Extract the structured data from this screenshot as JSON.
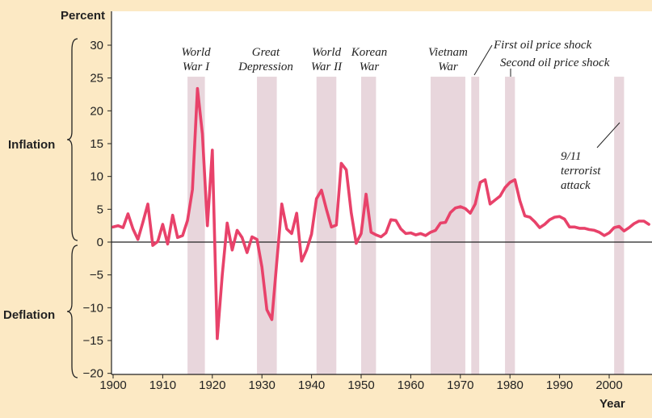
{
  "chart_data": {
    "type": "line",
    "title": "",
    "ylabel": "Percent",
    "xlabel": "Year",
    "xlim": [
      1900,
      2008
    ],
    "ylim": [
      -20,
      30
    ],
    "xticks": [
      "1900",
      "1910",
      "1920",
      "1930",
      "1940",
      "1950",
      "1960",
      "1970",
      "1980",
      "1990",
      "2000"
    ],
    "yticks": [
      "30",
      "25",
      "20",
      "15",
      "10",
      "5",
      "0",
      "−5",
      "−10",
      "−15",
      "−20"
    ],
    "brace_labels": {
      "inflation": "Inflation",
      "deflation": "Deflation"
    },
    "line_color": "#e8426a",
    "band_color": "#e8d6dc",
    "series": [
      {
        "name": "Inflation rate",
        "x": [
          1900,
          1901,
          1902,
          1903,
          1904,
          1905,
          1906,
          1907,
          1908,
          1909,
          1910,
          1911,
          1912,
          1913,
          1914,
          1915,
          1916,
          1917,
          1918,
          1919,
          1920,
          1921,
          1922,
          1923,
          1924,
          1925,
          1926,
          1927,
          1928,
          1929,
          1930,
          1931,
          1932,
          1933,
          1934,
          1935,
          1936,
          1937,
          1938,
          1939,
          1940,
          1941,
          1942,
          1943,
          1944,
          1945,
          1946,
          1947,
          1948,
          1949,
          1950,
          1951,
          1952,
          1953,
          1954,
          1955,
          1956,
          1957,
          1958,
          1959,
          1960,
          1961,
          1962,
          1963,
          1964,
          1965,
          1966,
          1967,
          1968,
          1969,
          1970,
          1971,
          1972,
          1973,
          1974,
          1975,
          1976,
          1977,
          1978,
          1979,
          1980,
          1981,
          1982,
          1983,
          1984,
          1985,
          1986,
          1987,
          1988,
          1989,
          1990,
          1991,
          1992,
          1993,
          1994,
          1995,
          1996,
          1997,
          1998,
          1999,
          2000,
          2001,
          2002,
          2003,
          2004,
          2005,
          2006,
          2007,
          2008
        ],
        "values": [
          2.3,
          2.5,
          2.2,
          4.3,
          2.0,
          0.4,
          3.0,
          5.8,
          -0.5,
          0.1,
          2.7,
          -0.3,
          4.1,
          0.7,
          1.0,
          3.3,
          8.0,
          23.4,
          16.5,
          2.5,
          14.0,
          -14.7,
          -5.0,
          2.9,
          -1.2,
          1.8,
          0.7,
          -1.6,
          0.8,
          0.4,
          -3.8,
          -10.3,
          -11.8,
          -3.0,
          5.8,
          2.0,
          1.3,
          4.4,
          -2.9,
          -1.2,
          1.2,
          6.6,
          7.9,
          5.0,
          2.3,
          2.6,
          12.0,
          11.0,
          4.5,
          -0.2,
          1.3,
          7.3,
          1.5,
          1.1,
          0.8,
          1.4,
          3.4,
          3.3,
          2.0,
          1.3,
          1.4,
          1.1,
          1.3,
          1.0,
          1.5,
          1.8,
          2.9,
          3.0,
          4.5,
          5.2,
          5.4,
          5.1,
          4.4,
          5.8,
          9.1,
          9.5,
          5.8,
          6.4,
          7.0,
          8.3,
          9.1,
          9.5,
          6.3,
          4.0,
          3.8,
          3.1,
          2.2,
          2.7,
          3.4,
          3.8,
          3.9,
          3.5,
          2.3,
          2.3,
          2.1,
          2.1,
          1.9,
          1.8,
          1.5,
          1.0,
          1.4,
          2.2,
          2.4,
          1.7,
          2.2,
          2.8,
          3.2,
          3.2,
          2.7
        ]
      }
    ],
    "shaded_periods": [
      {
        "start": 1915,
        "end": 1918.5,
        "label": [
          "World",
          "War I"
        ]
      },
      {
        "start": 1929,
        "end": 1933,
        "label": [
          "Great",
          "Depression"
        ]
      },
      {
        "start": 1941,
        "end": 1945,
        "label": [
          "World",
          "War II"
        ]
      },
      {
        "start": 1950,
        "end": 1953,
        "label": [
          "Korean",
          "War"
        ]
      },
      {
        "start": 1964,
        "end": 1971,
        "label": [
          "Vietnam",
          "War"
        ]
      },
      {
        "start": 1972.2,
        "end": 1973.8,
        "label": [
          "First oil price shock"
        ]
      },
      {
        "start": 1979,
        "end": 1981,
        "label": [
          "Second oil price shock"
        ]
      },
      {
        "start": 2001,
        "end": 2003,
        "label": [
          "9/11",
          "terrorist",
          "attack"
        ]
      }
    ]
  }
}
